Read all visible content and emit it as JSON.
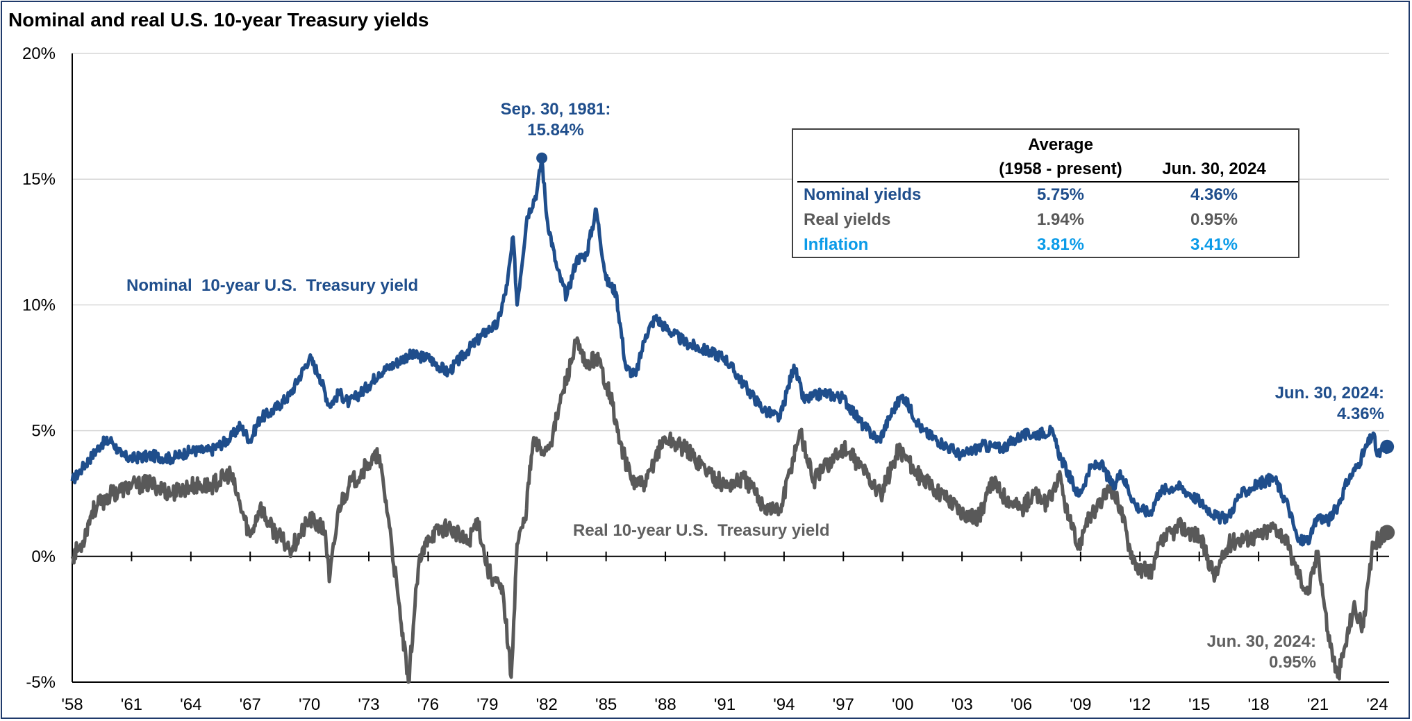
{
  "chart_data": {
    "type": "line",
    "title": "Nominal and real U.S. 10-year Treasury yields",
    "xlabel": "",
    "ylabel": "",
    "xlim": [
      1958,
      2024.6
    ],
    "ylim": [
      -5,
      20
    ],
    "y_ticks": [
      -5,
      0,
      5,
      10,
      15,
      20
    ],
    "y_tick_labels": [
      "-5%",
      "0%",
      "5%",
      "10%",
      "15%",
      "20%"
    ],
    "x_ticks": [
      1958,
      1961,
      1964,
      1967,
      1970,
      1973,
      1976,
      1979,
      1982,
      1985,
      1988,
      1991,
      1994,
      1997,
      2000,
      2003,
      2006,
      2009,
      2012,
      2015,
      2018,
      2021,
      2024
    ],
    "x_tick_labels": [
      "'58",
      "'61",
      "'64",
      "'67",
      "'70",
      "'73",
      "'76",
      "'79",
      "'82",
      "'85",
      "'88",
      "'91",
      "'94",
      "'97",
      "'00",
      "'03",
      "'06",
      "'09",
      "'12",
      "'15",
      "'18",
      "'21",
      "'24"
    ],
    "grid": "horizontal",
    "colors": {
      "nominal": "#1f4e8c",
      "real": "#595959",
      "inflation": "#0b9be8"
    },
    "series": [
      {
        "name": "Nominal 10-year U.S. Treasury yield",
        "x": [
          1958,
          1958.5,
          1959,
          1959.5,
          1960,
          1960.5,
          1961,
          1962,
          1963,
          1964,
          1965,
          1966,
          1966.5,
          1967,
          1967.5,
          1968,
          1969,
          1970,
          1970.5,
          1971,
          1971.5,
          1972,
          1973,
          1973.5,
          1974,
          1975,
          1976,
          1977,
          1978,
          1979,
          1979.5,
          1980,
          1980.3,
          1980.5,
          1981,
          1981.5,
          1981.75,
          1982,
          1982.5,
          1983,
          1983.5,
          1984,
          1984.5,
          1985,
          1985.5,
          1986,
          1986.5,
          1987,
          1987.5,
          1988,
          1989,
          1990,
          1991,
          1992,
          1993,
          1993.8,
          1994.5,
          1995,
          1996,
          1997,
          1998,
          1998.8,
          1999.5,
          2000,
          2001,
          2002,
          2003,
          2004,
          2005,
          2006,
          2007,
          2007.5,
          2008,
          2008.9,
          2009.5,
          2010,
          2010.7,
          2011,
          2011.8,
          2012.5,
          2013,
          2013.9,
          2014.5,
          2015,
          2016,
          2016.5,
          2017,
          2018,
          2018.8,
          2019.5,
          2020,
          2020.6,
          2021,
          2021.5,
          2022,
          2022.5,
          2023,
          2023.8,
          2024,
          2024.5
        ],
        "y": [
          3.0,
          3.5,
          4.0,
          4.5,
          4.6,
          4.0,
          3.9,
          4.0,
          3.9,
          4.2,
          4.2,
          4.7,
          5.2,
          4.6,
          5.5,
          5.7,
          6.4,
          7.9,
          7.2,
          6.0,
          6.5,
          6.1,
          6.8,
          7.3,
          7.5,
          8.0,
          7.9,
          7.3,
          8.2,
          9.0,
          9.2,
          10.8,
          12.7,
          10.0,
          13.5,
          14.5,
          15.84,
          13.5,
          11.5,
          10.3,
          11.8,
          12.0,
          13.8,
          11.0,
          10.5,
          7.5,
          7.2,
          8.8,
          9.5,
          9.1,
          8.5,
          8.2,
          7.9,
          6.8,
          5.8,
          5.5,
          7.6,
          6.2,
          6.5,
          6.3,
          5.2,
          4.6,
          5.8,
          6.4,
          5.0,
          4.5,
          4.0,
          4.4,
          4.3,
          4.8,
          4.9,
          5.0,
          3.9,
          2.4,
          3.5,
          3.7,
          2.7,
          3.4,
          2.0,
          1.7,
          2.6,
          2.8,
          2.5,
          2.2,
          1.5,
          1.6,
          2.4,
          2.9,
          3.1,
          2.0,
          0.6,
          0.7,
          1.6,
          1.4,
          2.0,
          3.0,
          3.6,
          4.9,
          4.0,
          4.36
        ]
      },
      {
        "name": "Real 10-year U.S. Treasury yield",
        "x": [
          1958,
          1958.5,
          1959,
          1960,
          1961,
          1962,
          1963,
          1964,
          1965,
          1966,
          1966.5,
          1967,
          1967.5,
          1968,
          1969,
          1969.5,
          1970,
          1970.8,
          1971,
          1971.5,
          1972,
          1973,
          1973.5,
          1974,
          1974.6,
          1975,
          1975.5,
          1976,
          1977,
          1978,
          1978.5,
          1979,
          1979.8,
          1980.2,
          1980.5,
          1980.9,
          1981.3,
          1981.9,
          1982.3,
          1982.8,
          1983.5,
          1984,
          1984.5,
          1985.2,
          1985.7,
          1986.3,
          1987,
          1987.5,
          1988,
          1989,
          1990,
          1991,
          1992,
          1993,
          1993.8,
          1994.8,
          1995.5,
          1996,
          1997,
          1998,
          1998.9,
          1999.8,
          2000.3,
          2001,
          2002,
          2003,
          2003.8,
          2004.6,
          2005,
          2006,
          2006.7,
          2007.3,
          2007.9,
          2008.4,
          2008.9,
          2009.3,
          2009.8,
          2010.5,
          2011,
          2011.5,
          2012,
          2012.7,
          2013,
          2014,
          2014.5,
          2015,
          2015.8,
          2016.5,
          2017,
          2018,
          2018.8,
          2019.3,
          2019.8,
          2020.5,
          2021,
          2021.5,
          2022,
          2022.4,
          2022.8,
          2023.3,
          2023.8,
          2024.5
        ],
        "y": [
          0.0,
          0.5,
          1.8,
          2.5,
          2.8,
          2.9,
          2.5,
          2.8,
          2.8,
          3.3,
          2.0,
          0.8,
          2.0,
          1.2,
          0.3,
          0.8,
          1.5,
          1.0,
          -1.0,
          2.0,
          2.8,
          3.7,
          4.0,
          1.5,
          -2.5,
          -5.0,
          -0.5,
          0.8,
          1.2,
          0.5,
          1.5,
          -0.5,
          -1.5,
          -4.8,
          0.5,
          1.5,
          4.5,
          4.2,
          4.8,
          6.5,
          8.5,
          7.5,
          8.0,
          6.5,
          4.5,
          3.0,
          2.8,
          4.0,
          4.7,
          4.3,
          3.5,
          2.8,
          3.1,
          2.0,
          1.8,
          5.0,
          3.0,
          3.5,
          4.3,
          3.5,
          2.4,
          4.3,
          3.8,
          3.0,
          2.5,
          1.8,
          1.5,
          3.0,
          2.5,
          1.9,
          2.5,
          2.0,
          3.2,
          1.5,
          0.3,
          1.5,
          1.8,
          2.8,
          2.0,
          0.3,
          -0.6,
          -0.5,
          0.5,
          1.2,
          1.0,
          0.8,
          -0.8,
          0.5,
          0.7,
          0.8,
          1.2,
          0.8,
          -0.3,
          -1.5,
          0.2,
          -3.0,
          -4.8,
          -3.5,
          -2.0,
          -2.8,
          0.5,
          0.95
        ]
      }
    ],
    "annotations": {
      "peak_line1": "Sep. 30, 1981:",
      "peak_line2": "15.84%",
      "nominal_label": "Nominal  10-year U.S.  Treasury yield",
      "real_label": "Real 10-year U.S.  Treasury yield",
      "nominal_end_line1": "Jun. 30, 2024:",
      "nominal_end_line2": "4.36%",
      "real_end_line1": "Jun. 30, 2024:",
      "real_end_line2": "0.95%"
    },
    "table": {
      "header_avg_line1": "Average",
      "header_avg_line2": "(1958 - present)",
      "header_current": "Jun. 30, 2024",
      "rows": [
        {
          "label": "Nominal yields",
          "average": "5.75%",
          "current": "4.36%",
          "color": "#1f4e8c"
        },
        {
          "label": "Real yields",
          "average": "1.94%",
          "current": "0.95%",
          "color": "#595959"
        },
        {
          "label": "Inflation",
          "average": "3.81%",
          "current": "3.41%",
          "color": "#0b9be8"
        }
      ]
    }
  }
}
